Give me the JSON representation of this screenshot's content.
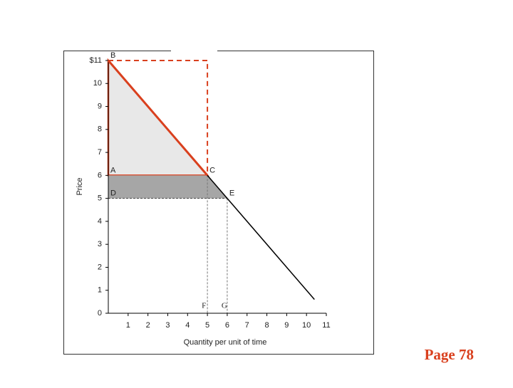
{
  "chart_data": {
    "type": "line",
    "xlabel": "Quantity per unit of time",
    "ylabel": "Price",
    "xlim": [
      0,
      11
    ],
    "ylim": [
      0,
      11
    ],
    "xticks": [
      1,
      2,
      3,
      4,
      5,
      6,
      7,
      8,
      9,
      10,
      11
    ],
    "yticks": [
      0,
      1,
      2,
      3,
      4,
      5,
      6,
      7,
      8,
      9,
      10,
      {
        "value": 11,
        "label": "$11"
      }
    ],
    "series": [
      {
        "color": "#d9401e",
        "x": [
          0,
          5
        ],
        "values": [
          11,
          6
        ]
      },
      {
        "color": "#000000",
        "x": [
          5,
          10.4
        ],
        "values": [
          6,
          0.6
        ]
      }
    ],
    "areas": [
      {
        "color": "#e8e8e8",
        "stroke": "#d9401e",
        "x": [
          0,
          5,
          0
        ],
        "values": [
          11,
          6,
          6
        ]
      },
      {
        "color": "#a6a6a6",
        "x": [
          0,
          5,
          6,
          0
        ],
        "values": [
          6,
          6,
          5,
          5
        ]
      }
    ],
    "points": [
      {
        "label": "B",
        "x": 0,
        "y": 11
      },
      {
        "label": "A",
        "x": 0,
        "y": 6
      },
      {
        "label": "C",
        "x": 5,
        "y": 6
      },
      {
        "label": "D",
        "x": 0,
        "y": 5
      },
      {
        "label": "E",
        "x": 6,
        "y": 5
      },
      {
        "label": "F",
        "x": 5,
        "y": 0
      },
      {
        "label": "G",
        "x": 6,
        "y": 0
      }
    ]
  },
  "footer": "Page 78"
}
